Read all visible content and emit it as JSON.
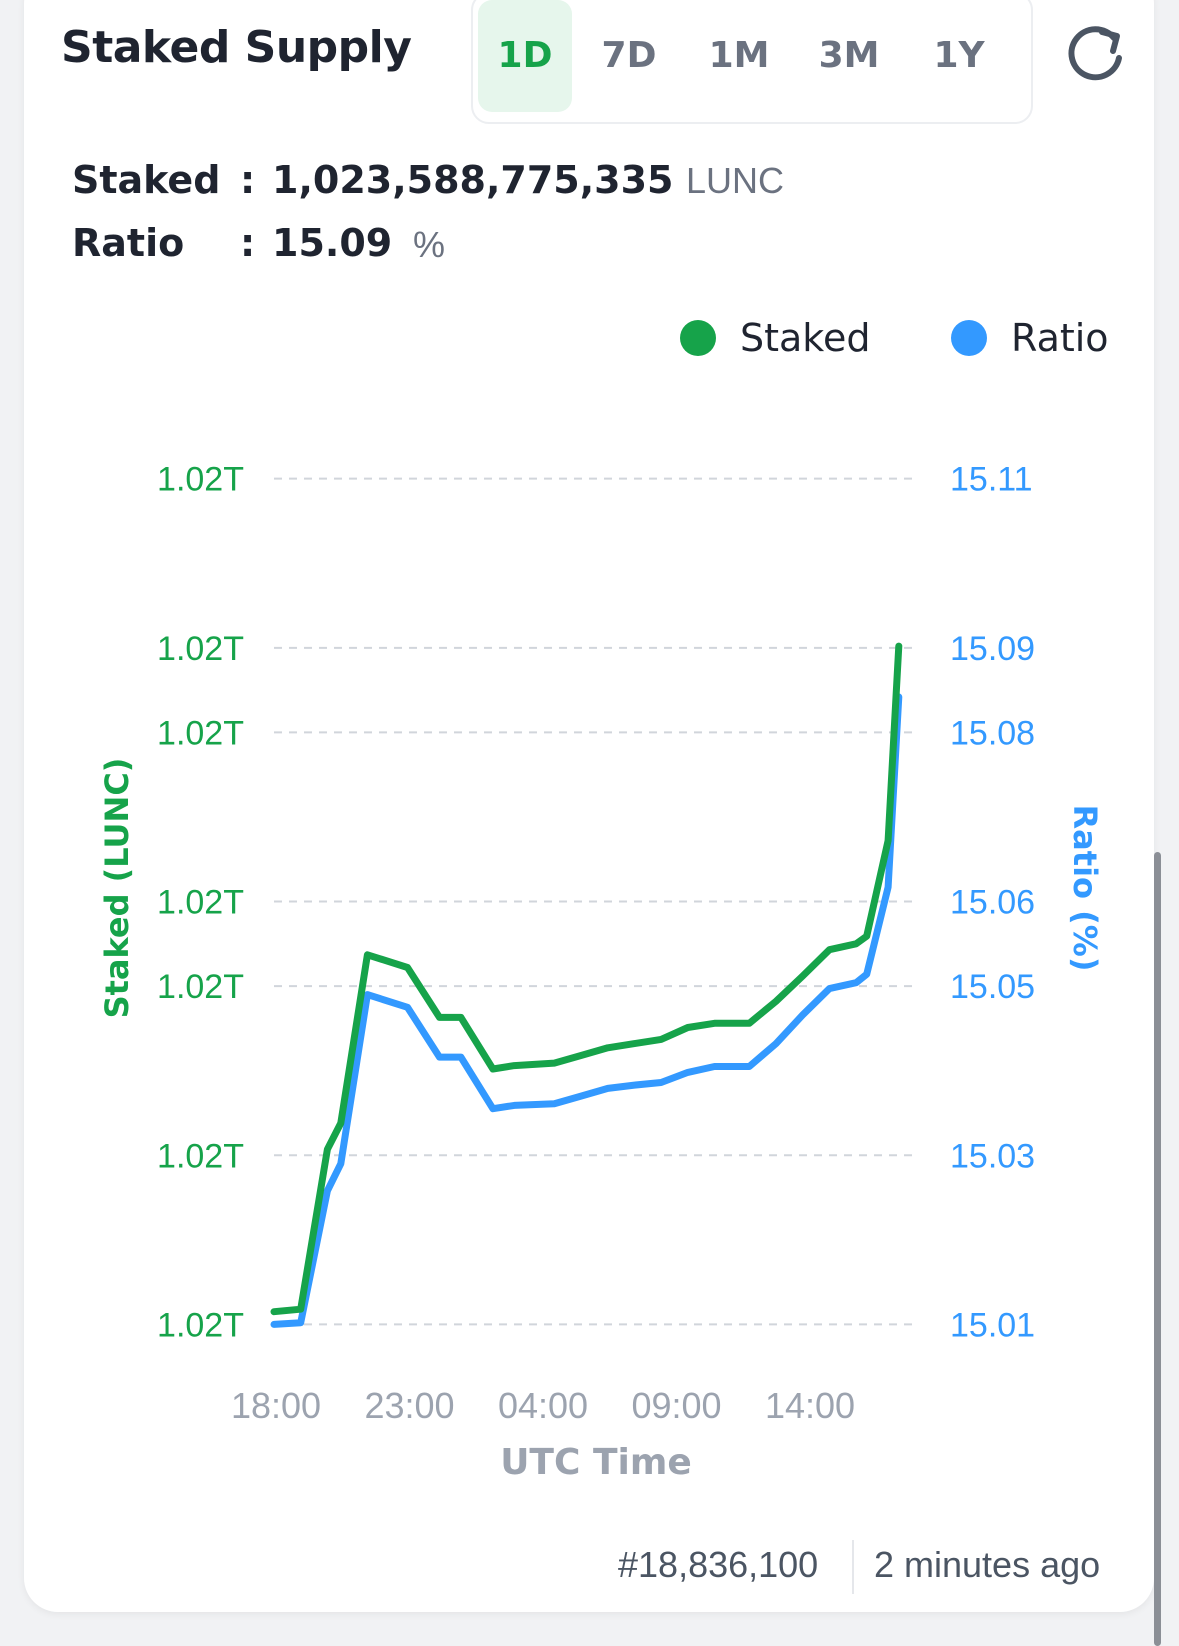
{
  "header": {
    "title": "Staked Supply",
    "ranges": [
      "1D",
      "7D",
      "1M",
      "3M",
      "1Y"
    ],
    "active_range": "1D",
    "refresh_icon": "refresh-icon"
  },
  "stats": {
    "staked_label": "Staked",
    "staked_value": "1,023,588,775,335",
    "staked_unit": "LUNC",
    "ratio_label": "Ratio",
    "ratio_value": "15.09",
    "ratio_unit": "%",
    "separator": ":"
  },
  "colors": {
    "staked": "#16a34a",
    "ratio": "#3399ff",
    "active_bg": "#e6f6ec"
  },
  "chart_data": {
    "type": "line",
    "xlabel": "UTC Time",
    "x_ticks": [
      "18:00",
      "23:00",
      "04:00",
      "09:00",
      "14:00"
    ],
    "left_axis": {
      "label": "Staked (LUNC)",
      "tick_labels": [
        "1.02T",
        "1.02T",
        "1.02T",
        "1.02T",
        "1.02T",
        "1.02T",
        "1.02T"
      ]
    },
    "right_axis": {
      "label": "Ratio (%)",
      "ticks": [
        15.11,
        15.09,
        15.08,
        15.06,
        15.05,
        15.03,
        15.01
      ],
      "ylim": [
        15.0078,
        15.1128
      ]
    },
    "grid": "horizontal-dashed",
    "legend": "top-right",
    "series": [
      {
        "name": "Staked",
        "axis": "left",
        "values_ratio_equivalent": [
          15.0115,
          15.0118,
          15.0307,
          15.0338,
          15.0537,
          15.0522,
          15.0463,
          15.0463,
          15.0402,
          15.0406,
          15.0409,
          15.0418,
          15.0427,
          15.0432,
          15.0437,
          15.0451,
          15.0456,
          15.0456,
          15.0482,
          15.0512,
          15.0543,
          15.055,
          15.0559,
          15.0672,
          15.0902
        ]
      },
      {
        "name": "Ratio",
        "axis": "right",
        "values": [
          15.01,
          15.0102,
          15.0258,
          15.029,
          15.049,
          15.0475,
          15.0416,
          15.0416,
          15.0355,
          15.0359,
          15.0361,
          15.037,
          15.0379,
          15.0383,
          15.0386,
          15.0398,
          15.0405,
          15.0405,
          15.0432,
          15.0466,
          15.0497,
          15.0504,
          15.0514,
          15.0617,
          15.0842
        ]
      }
    ],
    "x_positions_hours": [
      0,
      1,
      2,
      2.5,
      3.5,
      5.0,
      6.2,
      7.0,
      8.2,
      9.0,
      10.5,
      11.5,
      12.5,
      13.5,
      14.5,
      15.5,
      16.5,
      17.8,
      18.8,
      19.8,
      20.8,
      21.8,
      22.2,
      23.0,
      23.4
    ]
  },
  "footer": {
    "block": "#18,836,100",
    "updated": "2 minutes ago"
  }
}
